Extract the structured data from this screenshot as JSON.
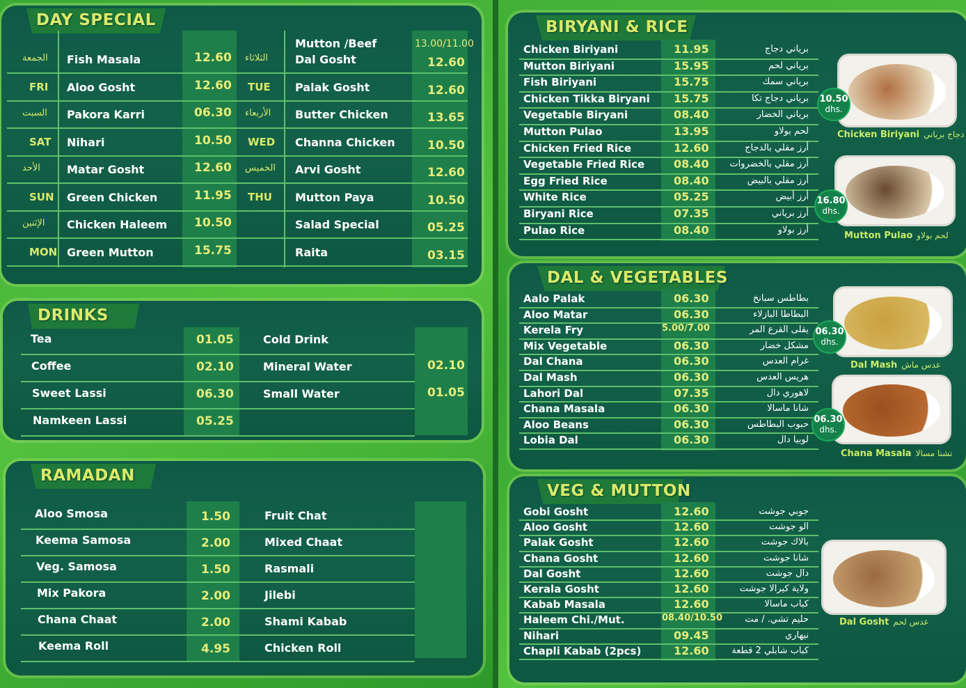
{
  "day_special": {
    "title": "DAY SPECIAL",
    "rows": [
      {
        "day": "الجمعة",
        "name": "Fish Masala",
        "price": "12.60",
        "day2": "الثلاثاء",
        "name2_top": "Mutton /Beef",
        "name2": "Dal Gosht",
        "price2_top": "13.00/11.00",
        "price2": "12.60"
      },
      {
        "day": "FRI",
        "name": "Aloo Gosht",
        "price": "12.60",
        "day2": "TUE",
        "name2": "Palak Gosht",
        "price2": "12.60"
      },
      {
        "day": "السبت",
        "name": "Pakora Karri",
        "price": "06.30",
        "day2": "الأربعاء",
        "name2": "Butter Chicken",
        "price2": "13.65"
      },
      {
        "day": "SAT",
        "name": "Nihari",
        "price": "10.50",
        "day2": "WED",
        "name2": "Channa Chicken",
        "price2": "10.50"
      },
      {
        "day": "الأحد",
        "name": "Matar Gosht",
        "price": "12.60",
        "day2": "الخميس",
        "name2": "Arvi Gosht",
        "price2": "12.60"
      },
      {
        "day": "SUN",
        "name": "Green Chicken",
        "price": "11.95",
        "day2": "THU",
        "name2": "Mutton Paya",
        "price2": "10.50"
      },
      {
        "day": "الإثنين",
        "name": "Chicken Haleem",
        "price": "10.50",
        "day2": "",
        "name2": "Salad Special",
        "price2": "05.25"
      },
      {
        "day": "MON",
        "name": "Green Mutton",
        "price": "15.75",
        "day2": "",
        "name2": "Raita",
        "price2": "03.15"
      }
    ]
  },
  "drinks": {
    "title": "DRINKS",
    "rows": [
      {
        "name": "Tea",
        "price": "01.05",
        "name2": "Cold Drink",
        "price2": ""
      },
      {
        "name": "Coffee",
        "price": "02.10",
        "name2": "Mineral Water",
        "price2": "02.10"
      },
      {
        "name": "Sweet Lassi",
        "price": "06.30",
        "name2": "Small Water",
        "price2": "01.05"
      },
      {
        "name": "Namkeen Lassi",
        "price": "05.25",
        "name2": "",
        "price2": ""
      }
    ]
  },
  "ramadan": {
    "title": "RAMADAN",
    "rows": [
      {
        "name": "Aloo Smosa",
        "price": "1.50",
        "name2": "Fruit Chat"
      },
      {
        "name": "Keema Samosa",
        "price": "2.00",
        "name2": "Mixed Chaat"
      },
      {
        "name": "Veg. Samosa",
        "price": "1.50",
        "name2": "Rasmali"
      },
      {
        "name": "Mix Pakora",
        "price": "2.00",
        "name2": "Jilebi"
      },
      {
        "name": "Chana Chaat",
        "price": "2.00",
        "name2": "Shami Kabab"
      },
      {
        "name": "Keema Roll",
        "price": "4.95",
        "name2": "Chicken Roll"
      }
    ]
  },
  "biryani": {
    "title": "BIRYANI & RICE",
    "rows": [
      {
        "name": "Chicken Biriyani",
        "price": "11.95",
        "ar": "برياني دجاج"
      },
      {
        "name": "Mutton Biriyani",
        "price": "15.95",
        "ar": "برياني لحم"
      },
      {
        "name": "Fish Biriyani",
        "price": "15.75",
        "ar": "برياني سمك"
      },
      {
        "name": "Chicken Tikka Biryani",
        "price": "15.75",
        "ar": "برياني دجاج تكا"
      },
      {
        "name": "Vegetable Biryani",
        "price": "08.40",
        "ar": "برياني الخضار"
      },
      {
        "name": "Mutton Pulao",
        "price": "13.95",
        "ar": "لحم بولاو"
      },
      {
        "name": "Chicken Fried Rice",
        "price": "12.60",
        "ar": "أرز مقلي بالدجاج"
      },
      {
        "name": "Vegetable Fried Rice",
        "price": "08.40",
        "ar": "أرز مقلي بالخضروات"
      },
      {
        "name": "Egg Fried Rice",
        "price": "08.40",
        "ar": "أرز مقلي بالبيض"
      },
      {
        "name": "White Rice",
        "price": "05.25",
        "ar": "أرز أبيض"
      },
      {
        "name": "Biryani Rice",
        "price": "07.35",
        "ar": "أرز برياني"
      },
      {
        "name": "Pulao Rice",
        "price": "08.40",
        "ar": "أرز بولاو"
      }
    ],
    "features": [
      {
        "price": "10.50",
        "unit": "dhs.",
        "name": "Chicken Biriyani",
        "ar": "دجاج برياني"
      },
      {
        "price": "16.80",
        "unit": "dhs.",
        "name": "Mutton Pulao",
        "ar": "لحم بولاو"
      }
    ]
  },
  "dal": {
    "title": "DAL & VEGETABLES",
    "rows": [
      {
        "name": "Aalo Palak",
        "price": "06.30",
        "ar": "بطاطس سبانخ"
      },
      {
        "name": "Aloo Matar",
        "price": "06.30",
        "ar": "البطاطا البازلاء"
      },
      {
        "name": "Kerela Fry",
        "price": "5.00/7.00",
        "ar": "يقلى القرع المر"
      },
      {
        "name": "Mix Vegetable",
        "price": "06.30",
        "ar": "مشكل خضار"
      },
      {
        "name": "Dal Chana",
        "price": "06.30",
        "ar": "غرام العدس"
      },
      {
        "name": "Dal Mash",
        "price": "06.30",
        "ar": "هريس العدس"
      },
      {
        "name": "Lahori Dal",
        "price": "07.35",
        "ar": "لاهوري دال"
      },
      {
        "name": "Chana Masala",
        "price": "06.30",
        "ar": "شانا ماسالا"
      },
      {
        "name": "Aloo Beans",
        "price": "06.30",
        "ar": "حبوب البطاطس"
      },
      {
        "name": "Lobia Dal",
        "price": "06.30",
        "ar": "لوبيا دال"
      }
    ],
    "features": [
      {
        "price": "06.30",
        "unit": "dhs.",
        "name": "Dal Mash",
        "ar": "عدس ماش"
      },
      {
        "price": "06.30",
        "unit": "dhs.",
        "name": "Chana Masala",
        "ar": "تشنا مسالا"
      }
    ]
  },
  "veg_mutton": {
    "title": "VEG & MUTTON",
    "rows": [
      {
        "name": "Gobi Gosht",
        "price": "12.60",
        "ar": "جوبي جوشت"
      },
      {
        "name": "Aloo Gosht",
        "price": "12.60",
        "ar": "الو جوشت"
      },
      {
        "name": "Palak Gosht",
        "price": "12.60",
        "ar": "بالاك جوشت"
      },
      {
        "name": "Chana Gosht",
        "price": "12.60",
        "ar": "شانا جوشت"
      },
      {
        "name": "Dal Gosht",
        "price": "12.60",
        "ar": "دال جوشت"
      },
      {
        "name": "Kerala Gosht",
        "price": "12.60",
        "ar": "ولاية كيرالا جوشت"
      },
      {
        "name": "Kabab Masala",
        "price": "12.60",
        "ar": "كباب ماسالا"
      },
      {
        "name": "Haleem Chi./Mut.",
        "price": "08.40/10.50",
        "ar": "حليم تشي. / مت"
      },
      {
        "name": "Nihari",
        "price": "09.45",
        "ar": "نيهاري"
      },
      {
        "name": "Chapli Kabab (2pcs)",
        "price": "12.60",
        "ar": "كباب شابلي 2 قطعة"
      }
    ],
    "features": [
      {
        "name": "Dal Gosht",
        "ar": "عدس لحم"
      }
    ]
  },
  "colors": {
    "panel": "#125c45",
    "accent": "#d9e96a",
    "background": "#3aa935"
  }
}
